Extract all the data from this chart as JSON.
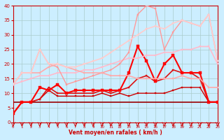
{
  "xlabel": "Vent moyen/en rafales ( km/h )",
  "xlim": [
    0,
    23
  ],
  "ylim": [
    0,
    40
  ],
  "xticks": [
    0,
    1,
    2,
    3,
    4,
    5,
    6,
    7,
    8,
    9,
    10,
    11,
    12,
    13,
    14,
    15,
    16,
    17,
    18,
    19,
    20,
    21,
    22,
    23
  ],
  "yticks": [
    0,
    5,
    10,
    15,
    20,
    25,
    30,
    35,
    40
  ],
  "background_color": "#cceeff",
  "grid_color": "#aacccc",
  "lines": [
    {
      "x": [
        0,
        1,
        2,
        3,
        4,
        5,
        6,
        7,
        8,
        9,
        10,
        11,
        12,
        13,
        14,
        15,
        16,
        17,
        18,
        19,
        20,
        21,
        22,
        23
      ],
      "y": [
        7,
        7,
        7,
        7,
        7,
        7,
        7,
        7,
        7,
        7,
        7,
        7,
        7,
        7,
        7,
        7,
        7,
        7,
        7,
        7,
        7,
        7,
        7,
        7
      ],
      "color": "#990000",
      "lw": 1.2,
      "marker": null,
      "ms": 0
    },
    {
      "x": [
        0,
        1,
        2,
        3,
        4,
        5,
        6,
        7,
        8,
        9,
        10,
        11,
        12,
        13,
        14,
        15,
        16,
        17,
        18,
        19,
        20,
        21,
        22,
        23
      ],
      "y": [
        3,
        7,
        7,
        8,
        11,
        9,
        9,
        9,
        9,
        9,
        10,
        9,
        10,
        9,
        10,
        10,
        10,
        10,
        11,
        12,
        12,
        12,
        7,
        7
      ],
      "color": "#cc0000",
      "lw": 1.0,
      "marker": "s",
      "ms": 2.0
    },
    {
      "x": [
        0,
        1,
        2,
        3,
        4,
        5,
        6,
        7,
        8,
        9,
        10,
        11,
        12,
        13,
        14,
        15,
        16,
        17,
        18,
        19,
        20,
        21,
        22,
        23
      ],
      "y": [
        3,
        7,
        7,
        8,
        12,
        10,
        10,
        10,
        10,
        10,
        11,
        10,
        11,
        12,
        15,
        16,
        14,
        15,
        18,
        17,
        17,
        15,
        7,
        7
      ],
      "color": "#dd1111",
      "lw": 1.2,
      "marker": "s",
      "ms": 2.0
    },
    {
      "x": [
        0,
        1,
        2,
        3,
        4,
        5,
        6,
        7,
        8,
        9,
        10,
        11,
        12,
        13,
        14,
        15,
        16,
        17,
        18,
        19,
        20,
        21,
        22,
        23
      ],
      "y": [
        3,
        7,
        7,
        12,
        11,
        13,
        10,
        11,
        11,
        11,
        11,
        11,
        11,
        17,
        26,
        21,
        14,
        20,
        23,
        17,
        17,
        17,
        7,
        7
      ],
      "color": "#ff0000",
      "lw": 1.5,
      "marker": "s",
      "ms": 2.5
    },
    {
      "x": [
        0,
        1,
        2,
        3,
        4,
        5,
        6,
        7,
        8,
        9,
        10,
        11,
        12,
        13,
        14,
        15,
        16,
        17,
        18,
        19,
        20,
        21,
        22,
        23
      ],
      "y": [
        13,
        14,
        15,
        16,
        16,
        17,
        17,
        17,
        18,
        18,
        19,
        20,
        21,
        22,
        22,
        23,
        23,
        24,
        24,
        25,
        25,
        26,
        26,
        20
      ],
      "color": "#ffbbcc",
      "lw": 1.2,
      "marker": "s",
      "ms": 2.0
    },
    {
      "x": [
        0,
        1,
        2,
        3,
        4,
        5,
        6,
        7,
        8,
        9,
        10,
        11,
        12,
        13,
        14,
        15,
        16,
        17,
        18,
        19,
        20,
        21,
        22,
        23
      ],
      "y": [
        13,
        17,
        17,
        25,
        20,
        19,
        13,
        14,
        15,
        16,
        17,
        18,
        20,
        24,
        37,
        40,
        39,
        25,
        31,
        35,
        34,
        33,
        37,
        21
      ],
      "color": "#ff9999",
      "lw": 1.0,
      "marker": "s",
      "ms": 2.0
    },
    {
      "x": [
        0,
        1,
        2,
        3,
        4,
        5,
        6,
        7,
        8,
        9,
        10,
        11,
        12,
        13,
        14,
        15,
        16,
        17,
        18,
        19,
        20,
        21,
        22,
        23
      ],
      "y": [
        13,
        17,
        17,
        17,
        19,
        20,
        19,
        18,
        17,
        17,
        17,
        16,
        16,
        16,
        15,
        15,
        15,
        15,
        15,
        16,
        15,
        15,
        12,
        12
      ],
      "color": "#ffaaaa",
      "lw": 1.2,
      "marker": "s",
      "ms": 2.0
    },
    {
      "x": [
        0,
        1,
        2,
        3,
        4,
        5,
        6,
        7,
        8,
        9,
        10,
        11,
        12,
        13,
        14,
        15,
        16,
        17,
        18,
        19,
        20,
        21,
        22,
        23
      ],
      "y": [
        13,
        17,
        17,
        25,
        20,
        20,
        19,
        19,
        20,
        21,
        22,
        24,
        26,
        28,
        30,
        32,
        33,
        32,
        34,
        35,
        34,
        33,
        37,
        21
      ],
      "color": "#ffcccc",
      "lw": 1.2,
      "marker": "s",
      "ms": 2.0
    }
  ]
}
